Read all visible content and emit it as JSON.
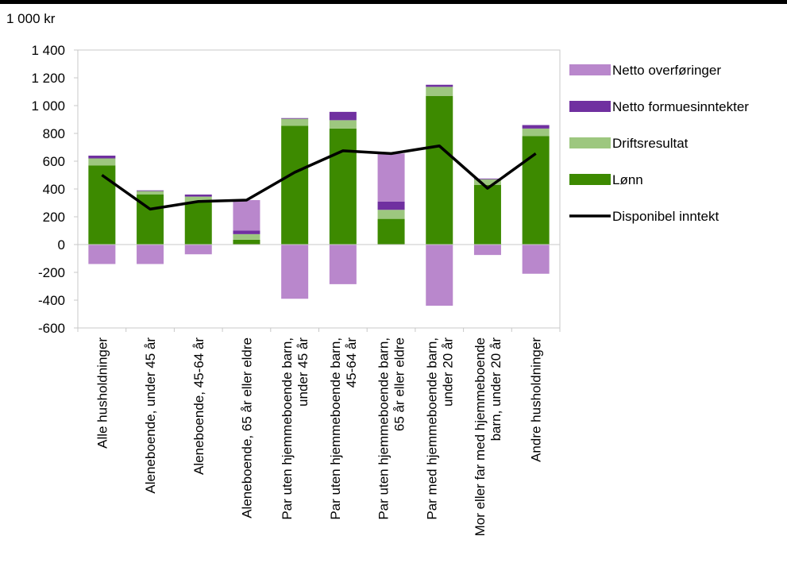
{
  "chart_data": {
    "type": "bar",
    "stacked": true,
    "unit_label": "1 000  kr",
    "ylim": [
      -600,
      1400
    ],
    "y_ticks": [
      "1 400",
      "1 200",
      "1 000",
      "800",
      "600",
      "400",
      "200",
      "0",
      "-200",
      "-400",
      "-600"
    ],
    "y_tick_values": [
      1400,
      1200,
      1000,
      800,
      600,
      400,
      200,
      0,
      -200,
      -400,
      -600
    ],
    "categories": [
      [
        "Alle husholdninger"
      ],
      [
        "Aleneboende, under 45 år"
      ],
      [
        "Aleneboende, 45-64 år"
      ],
      [
        "Aleneboende, 65 år eller eldre"
      ],
      [
        "Par uten hjemmeboende barn,",
        "under 45 år"
      ],
      [
        "Par uten hjemmeboende barn,",
        "45-64 år"
      ],
      [
        "Par uten hjemmeboende barn,",
        "65 år eller eldre"
      ],
      [
        "Par med hjemmeboende barn,",
        "under 20 år"
      ],
      [
        "Mor eller far med hjemmeboende",
        "barn, under 20 år"
      ],
      [
        "Andre husholdninger"
      ]
    ],
    "series": [
      {
        "name": "Lønn",
        "color": "#3d8a00",
        "values": [
          570,
          360,
          305,
          35,
          855,
          835,
          185,
          1070,
          430,
          780
        ]
      },
      {
        "name": "Driftsresultat",
        "color": "#9dc77f",
        "values": [
          50,
          25,
          40,
          40,
          50,
          60,
          65,
          65,
          40,
          55
        ]
      },
      {
        "name": "Netto formuesinntekter",
        "color": "#7030a0",
        "values": [
          20,
          5,
          15,
          25,
          5,
          60,
          60,
          15,
          5,
          25
        ]
      },
      {
        "name": "Netto overføringer",
        "color": "#b987cc",
        "values": [
          -140,
          -140,
          -70,
          220,
          -390,
          -285,
          345,
          -440,
          -75,
          -210
        ]
      }
    ],
    "line": {
      "name": "Disponibel inntekt",
      "color": "#000000",
      "values": [
        500,
        255,
        310,
        320,
        520,
        675,
        655,
        710,
        405,
        655
      ]
    },
    "legend": {
      "position": "right",
      "items": [
        {
          "label": "Netto overføringer",
          "color": "#b987cc",
          "kind": "bar"
        },
        {
          "label": "Netto formuesinntekter",
          "color": "#7030a0",
          "kind": "bar"
        },
        {
          "label": "Driftsresultat",
          "color": "#9dc77f",
          "kind": "bar"
        },
        {
          "label": "Lønn",
          "color": "#3d8a00",
          "kind": "bar"
        },
        {
          "label": "Disponibel inntekt",
          "color": "#000000",
          "kind": "line"
        }
      ]
    },
    "grid": false
  }
}
